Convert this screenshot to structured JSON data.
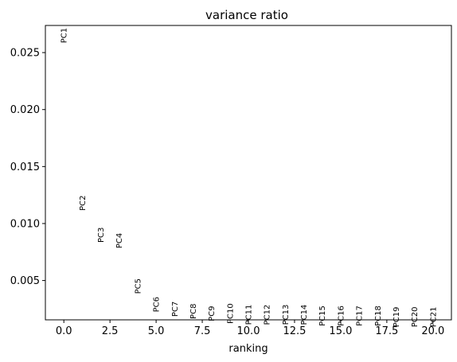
{
  "chart_data": {
    "type": "scatter",
    "title": "variance ratio",
    "xlabel": "ranking",
    "ylabel": "",
    "xlim": [
      -1.0,
      21.0
    ],
    "ylim": [
      0.00155,
      0.02738
    ],
    "xticks": [
      0.0,
      2.5,
      5.0,
      7.5,
      10.0,
      12.5,
      15.0,
      17.5,
      20.0
    ],
    "xtick_labels": [
      "0.0",
      "2.5",
      "5.0",
      "7.5",
      "10.0",
      "12.5",
      "15.0",
      "17.5",
      "20.0"
    ],
    "yticks": [
      0.005,
      0.01,
      0.015,
      0.02,
      0.025
    ],
    "ytick_labels": [
      "0.005",
      "0.010",
      "0.015",
      "0.020",
      "0.025"
    ],
    "grid": false,
    "points": [
      {
        "label": "PC1",
        "x": 0,
        "y": 0.0265
      },
      {
        "label": "PC2",
        "x": 1,
        "y": 0.0118
      },
      {
        "label": "PC3",
        "x": 2,
        "y": 0.009
      },
      {
        "label": "PC4",
        "x": 3,
        "y": 0.0085
      },
      {
        "label": "PC5",
        "x": 4,
        "y": 0.0045
      },
      {
        "label": "PC6",
        "x": 5,
        "y": 0.0029
      },
      {
        "label": "PC7",
        "x": 6,
        "y": 0.0025
      },
      {
        "label": "PC8",
        "x": 7,
        "y": 0.0023
      },
      {
        "label": "PC9",
        "x": 8,
        "y": 0.0021
      },
      {
        "label": "PC10",
        "x": 9,
        "y": 0.0021
      },
      {
        "label": "PC11",
        "x": 10,
        "y": 0.002
      },
      {
        "label": "PC12",
        "x": 11,
        "y": 0.002
      },
      {
        "label": "PC13",
        "x": 12,
        "y": 0.002
      },
      {
        "label": "PC14",
        "x": 13,
        "y": 0.002
      },
      {
        "label": "PC15",
        "x": 14,
        "y": 0.0019
      },
      {
        "label": "PC16",
        "x": 15,
        "y": 0.0019
      },
      {
        "label": "PC17",
        "x": 16,
        "y": 0.0019
      },
      {
        "label": "PC18",
        "x": 17,
        "y": 0.0019
      },
      {
        "label": "PC19",
        "x": 18,
        "y": 0.0018
      },
      {
        "label": "PC20",
        "x": 19,
        "y": 0.0018
      },
      {
        "label": "PC21",
        "x": 20,
        "y": 0.0018
      }
    ]
  }
}
